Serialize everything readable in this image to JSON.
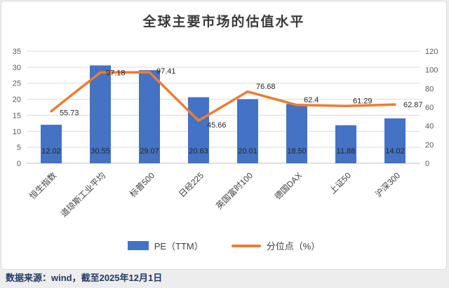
{
  "page": {
    "footer_note": "数据来源：wind，截至2025年12月1日"
  },
  "chart_data": {
    "type": "combo",
    "title": "全球主要市场的估值水平",
    "categories": [
      "恒生指数",
      "道琼斯工业平均",
      "标普500",
      "日经225",
      "英国富时100",
      "德国DAX",
      "上证50",
      "沪深300"
    ],
    "series": [
      {
        "name": "PE（TTM）",
        "type": "bar",
        "axis": "left",
        "color": "#4472C4",
        "values": [
          12.02,
          30.55,
          29.07,
          20.63,
          20.01,
          18.5,
          11.88,
          14.02
        ],
        "labels": [
          "12.02",
          "30.55",
          "29.07",
          "20.63",
          "20.01",
          "18.50",
          "11.88",
          "14.02"
        ]
      },
      {
        "name": "分位点（%）",
        "type": "line",
        "axis": "right",
        "color": "#ED7D31",
        "values": [
          55.73,
          97.18,
          97.41,
          45.66,
          76.68,
          62.4,
          61.29,
          62.87
        ],
        "labels": [
          "55.73",
          "97.18",
          "97.41",
          "45.66",
          "76.68",
          "62.4",
          "61.29",
          "62.87"
        ]
      }
    ],
    "left_axis": {
      "min": 0,
      "max": 35,
      "step": 5,
      "ticks": [
        0,
        5,
        10,
        15,
        20,
        25,
        30,
        35
      ]
    },
    "right_axis": {
      "min": 0,
      "max": 120,
      "step": 20,
      "ticks": [
        0,
        20,
        40,
        60,
        80,
        100,
        120
      ]
    },
    "grid": true,
    "legend_position": "bottom"
  }
}
